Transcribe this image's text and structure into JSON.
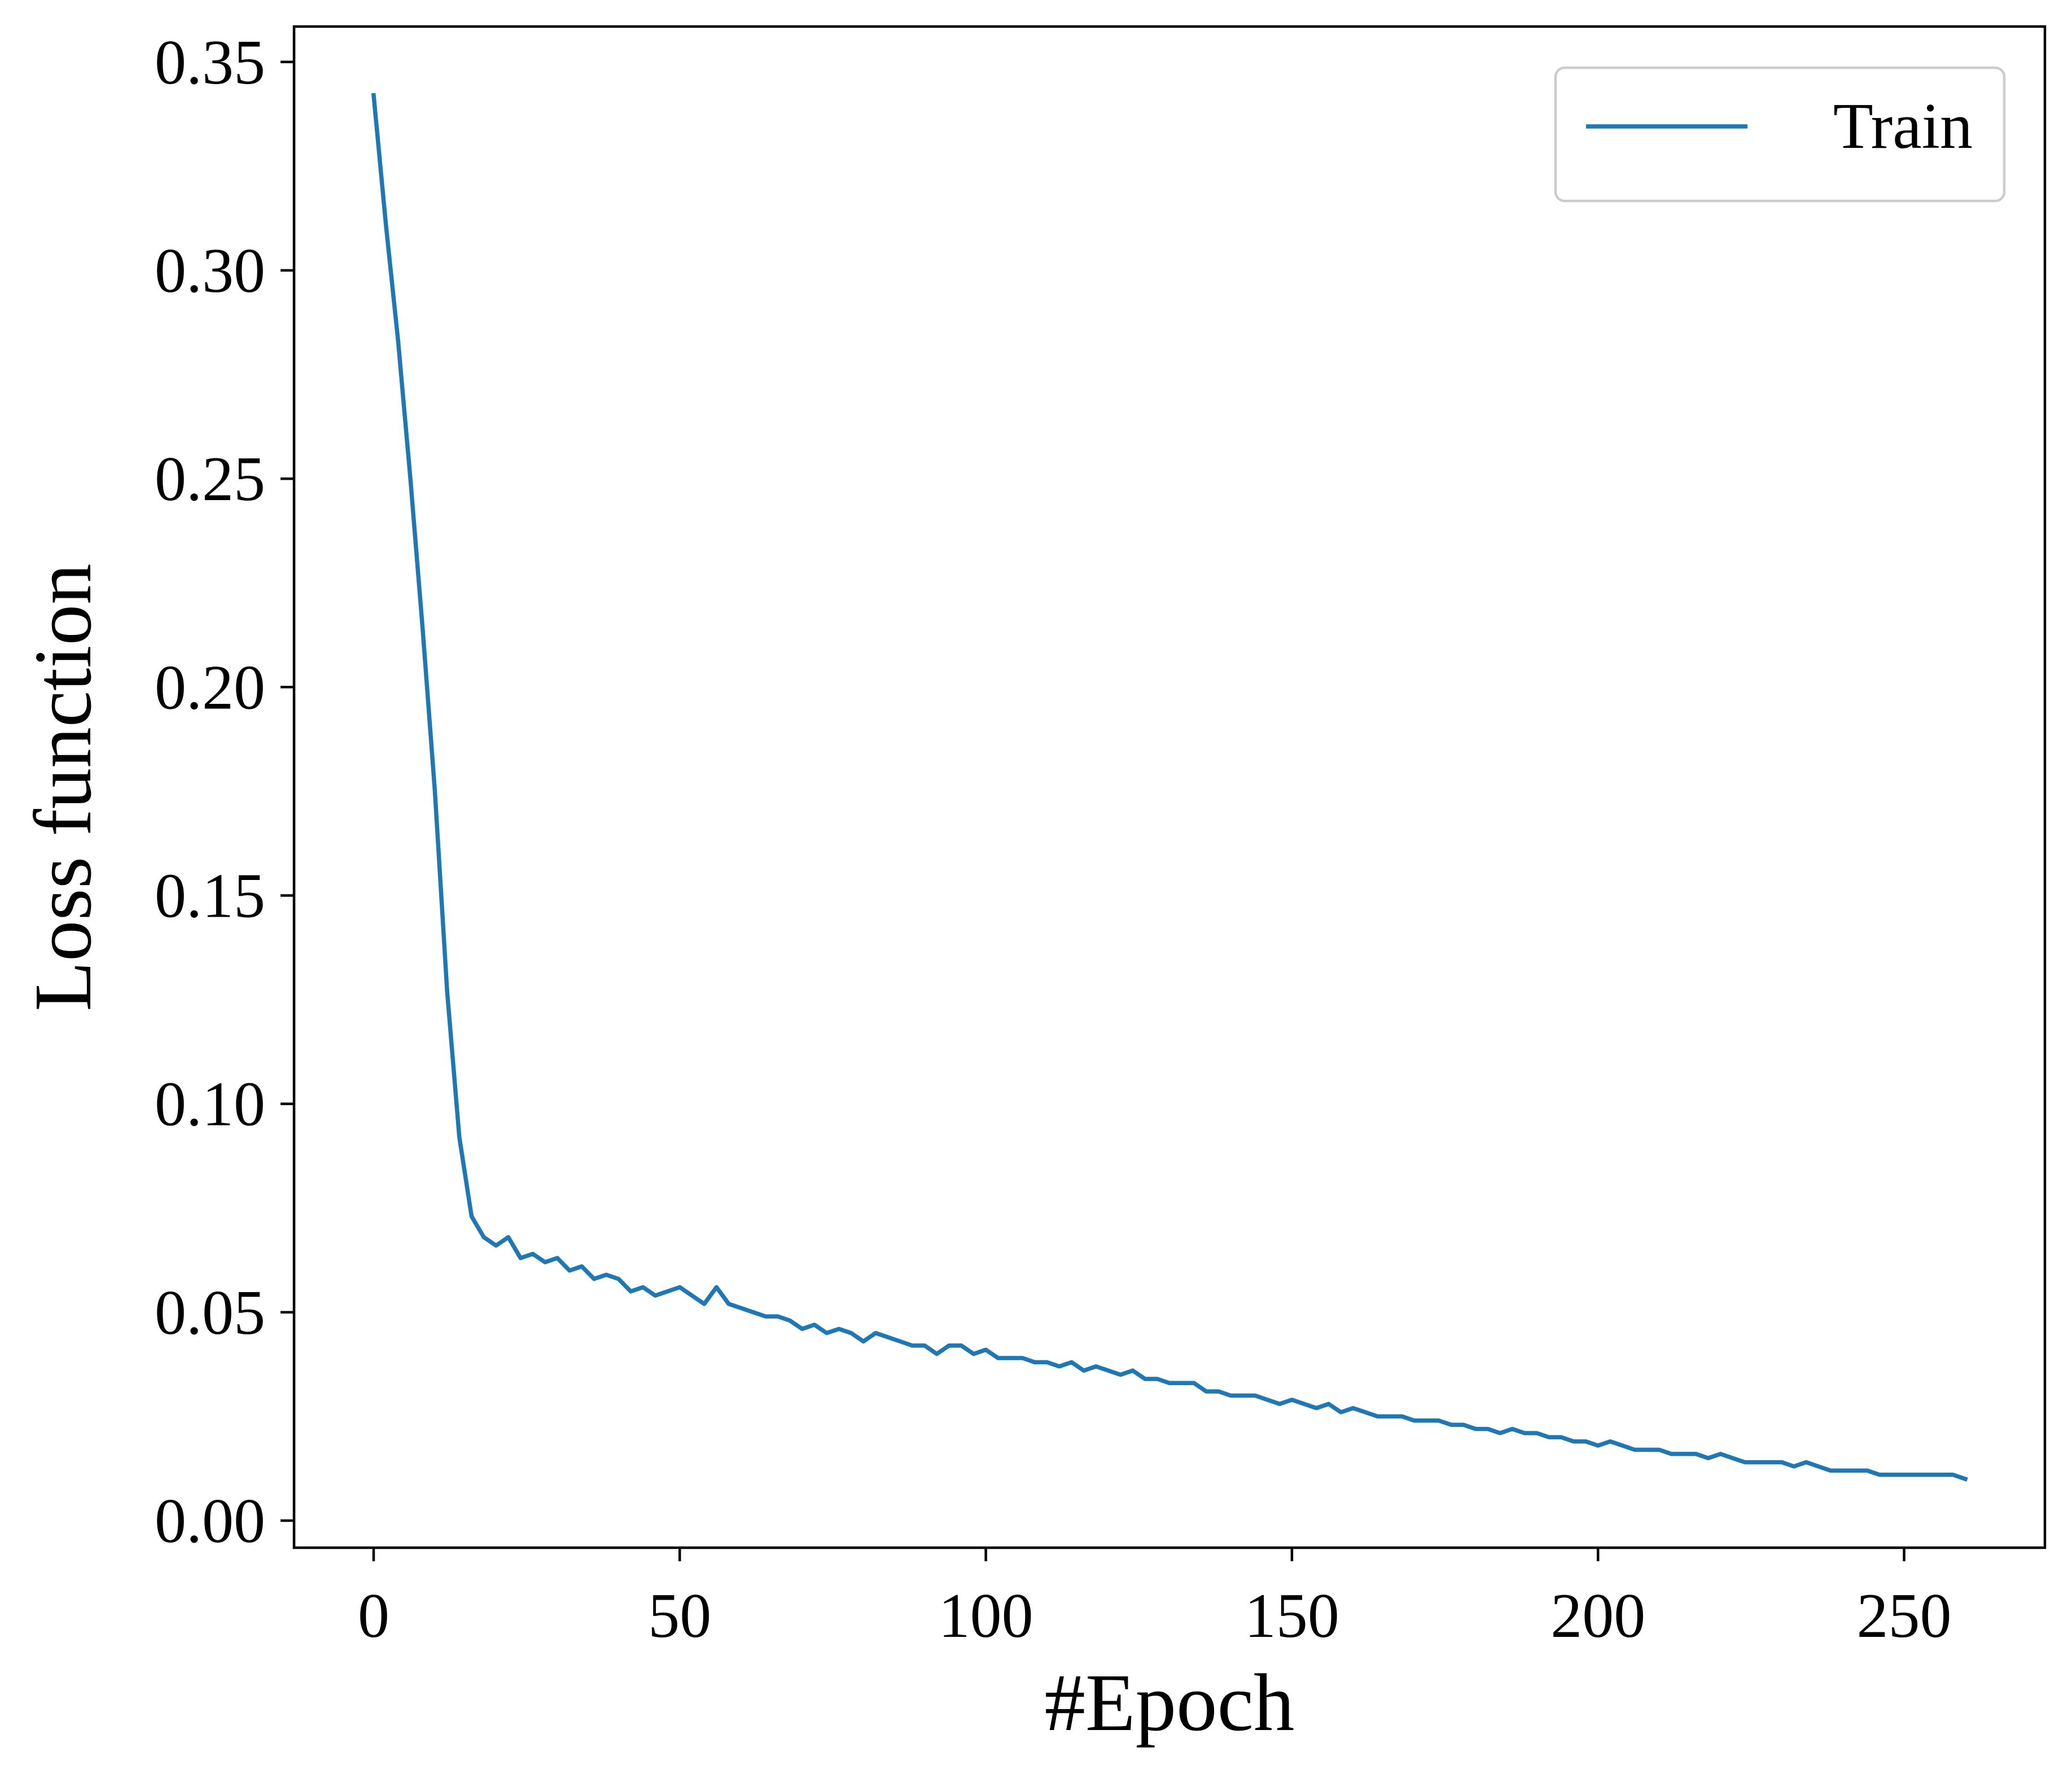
{
  "chart_data": {
    "type": "line",
    "xlabel": "#Epoch",
    "ylabel": "Loss function",
    "xlim": [
      -13,
      273
    ],
    "ylim": [
      -0.0065,
      0.3585
    ],
    "xticks": [
      0,
      50,
      100,
      150,
      200,
      250
    ],
    "xtick_labels": [
      "0",
      "50",
      "100",
      "150",
      "200",
      "250"
    ],
    "yticks": [
      0.0,
      0.05,
      0.1,
      0.15,
      0.2,
      0.25,
      0.3,
      0.35
    ],
    "ytick_labels": [
      "0.00",
      "0.05",
      "0.10",
      "0.15",
      "0.20",
      "0.25",
      "0.30",
      "0.35"
    ],
    "grid": false,
    "legend_position": "top-right",
    "series": [
      {
        "name": "Train",
        "color": "#1f77b4",
        "x": [
          0,
          2,
          4,
          6,
          8,
          10,
          12,
          14,
          16,
          18,
          20,
          22,
          24,
          26,
          28,
          30,
          32,
          34,
          36,
          38,
          40,
          42,
          44,
          46,
          48,
          50,
          52,
          54,
          56,
          58,
          60,
          62,
          64,
          66,
          68,
          70,
          72,
          74,
          76,
          78,
          80,
          82,
          84,
          86,
          88,
          90,
          92,
          94,
          96,
          98,
          100,
          102,
          104,
          106,
          108,
          110,
          112,
          114,
          116,
          118,
          120,
          122,
          124,
          126,
          128,
          130,
          132,
          134,
          136,
          138,
          140,
          142,
          144,
          146,
          148,
          150,
          152,
          154,
          156,
          158,
          160,
          162,
          164,
          166,
          168,
          170,
          172,
          174,
          176,
          178,
          180,
          182,
          184,
          186,
          188,
          190,
          192,
          194,
          196,
          198,
          200,
          202,
          204,
          206,
          208,
          210,
          212,
          214,
          216,
          218,
          220,
          222,
          224,
          226,
          228,
          230,
          232,
          234,
          236,
          238,
          240,
          242,
          244,
          246,
          248,
          250,
          252,
          254,
          256,
          258,
          260
        ],
        "y": [
          0.342,
          0.311,
          0.283,
          0.25,
          0.214,
          0.175,
          0.127,
          0.092,
          0.073,
          0.068,
          0.066,
          0.068,
          0.063,
          0.064,
          0.062,
          0.063,
          0.06,
          0.061,
          0.058,
          0.059,
          0.058,
          0.055,
          0.056,
          0.054,
          0.055,
          0.056,
          0.054,
          0.052,
          0.056,
          0.052,
          0.051,
          0.05,
          0.049,
          0.049,
          0.048,
          0.046,
          0.047,
          0.045,
          0.046,
          0.045,
          0.043,
          0.045,
          0.044,
          0.043,
          0.042,
          0.042,
          0.04,
          0.042,
          0.042,
          0.04,
          0.041,
          0.039,
          0.039,
          0.039,
          0.038,
          0.038,
          0.037,
          0.038,
          0.036,
          0.037,
          0.036,
          0.035,
          0.036,
          0.034,
          0.034,
          0.033,
          0.033,
          0.033,
          0.031,
          0.031,
          0.03,
          0.03,
          0.03,
          0.029,
          0.028,
          0.029,
          0.028,
          0.027,
          0.028,
          0.026,
          0.027,
          0.026,
          0.025,
          0.025,
          0.025,
          0.024,
          0.024,
          0.024,
          0.023,
          0.023,
          0.022,
          0.022,
          0.021,
          0.022,
          0.021,
          0.021,
          0.02,
          0.02,
          0.019,
          0.019,
          0.018,
          0.019,
          0.018,
          0.017,
          0.017,
          0.017,
          0.016,
          0.016,
          0.016,
          0.015,
          0.016,
          0.015,
          0.014,
          0.014,
          0.014,
          0.014,
          0.013,
          0.014,
          0.013,
          0.012,
          0.012,
          0.012,
          0.012,
          0.011,
          0.011,
          0.011,
          0.011,
          0.011,
          0.011,
          0.011,
          0.01
        ]
      }
    ]
  }
}
